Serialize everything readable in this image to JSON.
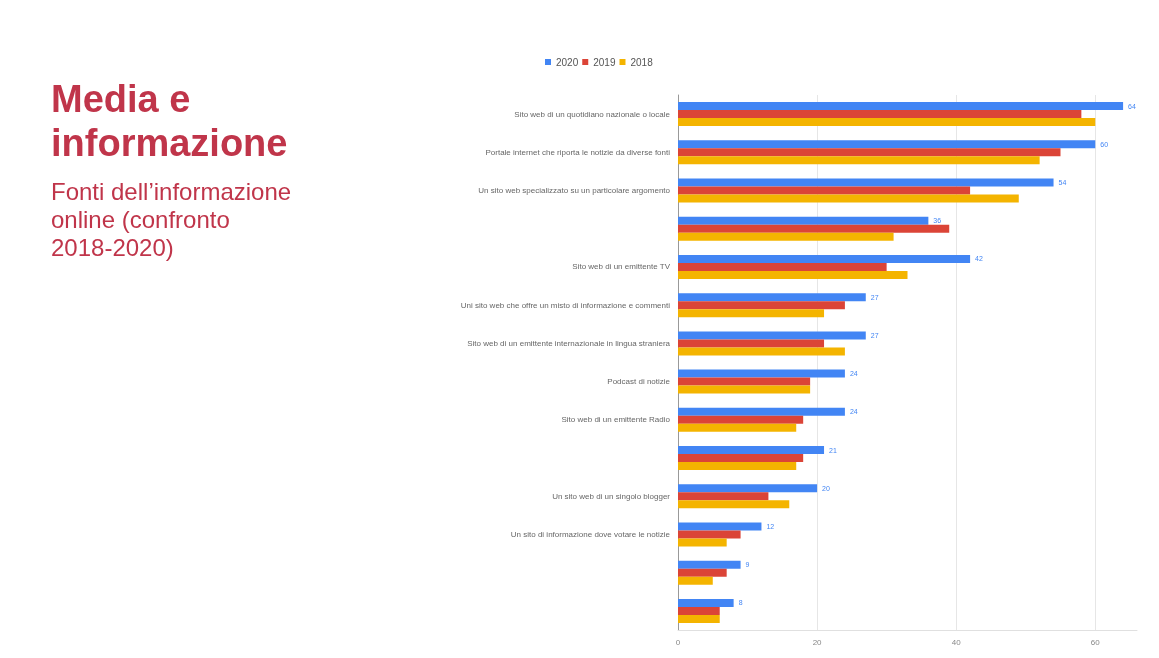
{
  "chart_data": {
    "type": "bar",
    "orientation": "horizontal",
    "title": "Media e informazione",
    "subtitle": "Fonti dell’informazione online (confronto 2018-2020)",
    "categories": [
      "Sito web di un quotidiano nazionale o locale",
      "Portale internet che riporta le notizie da diverse fonti",
      "Un sito web specializzato su un particolare argomento",
      null,
      "Sito web di un emittente TV",
      "Uni sito web che offre un misto di informazione e commenti",
      "Sito web di un emittente internazionale in lingua straniera",
      "Podcast di notizie",
      "Sito web di un emittente Radio",
      null,
      "Un sito web di un singolo blogger",
      "Un sito di informazione dove votare le notizie",
      null,
      null
    ],
    "series": [
      {
        "name": "2020",
        "color": "#4285f4",
        "values": [
          64,
          60,
          54,
          36,
          42,
          27,
          27,
          24,
          24,
          21,
          20,
          12,
          9,
          8
        ],
        "value_labels": [
          "64",
          "60",
          "54",
          "36",
          "42",
          "27",
          "27",
          "24",
          "24",
          "21",
          "20",
          "12",
          "9",
          "8"
        ]
      },
      {
        "name": "2019",
        "color": "#db4437",
        "values": [
          58,
          55,
          42,
          39,
          30,
          24,
          21,
          19,
          18,
          18,
          13,
          9,
          7,
          6
        ]
      },
      {
        "name": "2018",
        "color": "#f4b400",
        "values": [
          60,
          52,
          49,
          31,
          33,
          21,
          24,
          19,
          17,
          17,
          16,
          7,
          5,
          6
        ]
      }
    ],
    "xlim": [
      0,
      66
    ],
    "xticks": [
      0,
      20,
      40,
      60
    ],
    "grid": "x",
    "legend": "top"
  }
}
